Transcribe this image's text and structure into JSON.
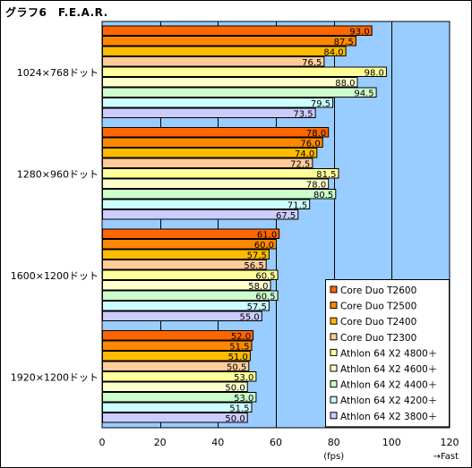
{
  "chart_data": {
    "type": "bar",
    "orientation": "horizontal",
    "title": "グラフ6　F.E.A.R.",
    "categories": [
      "1024×768ドット",
      "1280×960ドット",
      "1600×1200ドット",
      "1920×1200ドット"
    ],
    "series": [
      {
        "name": "Core Duo T2600",
        "color": "#ff6600",
        "values": [
          93.0,
          78.0,
          61.0,
          52.0
        ]
      },
      {
        "name": "Core Duo T2500",
        "color": "#ff8800",
        "values": [
          87.5,
          76.0,
          60.0,
          51.5
        ]
      },
      {
        "name": "Core Duo T2400",
        "color": "#ffbb00",
        "values": [
          84.0,
          74.0,
          57.5,
          51.0
        ]
      },
      {
        "name": "Core Duo T2300",
        "color": "#ffcc99",
        "values": [
          76.5,
          72.5,
          56.5,
          50.5
        ]
      },
      {
        "name": "Athlon 64 X2 4800＋",
        "color": "#ffff99",
        "values": [
          98.0,
          81.5,
          60.5,
          53.0
        ]
      },
      {
        "name": "Athlon 64 X2 4600＋",
        "color": "#ffffcc",
        "values": [
          88.0,
          78.0,
          58.0,
          50.0
        ]
      },
      {
        "name": "Athlon 64 X2 4400＋",
        "color": "#ccffcc",
        "values": [
          94.5,
          80.5,
          60.5,
          53.0
        ]
      },
      {
        "name": "Athlon 64 X2 4200＋",
        "color": "#ccffff",
        "values": [
          79.5,
          71.5,
          57.5,
          51.5
        ]
      },
      {
        "name": "Athlon 64 X2 3800＋",
        "color": "#ccccff",
        "values": [
          73.5,
          67.5,
          55.0,
          50.0
        ]
      }
    ],
    "value_labels": [
      [
        "93.0",
        "78.0",
        "61.0",
        "52.0"
      ],
      [
        "87.5",
        "76.0",
        "60.0",
        "51.5"
      ],
      [
        "84.0",
        "74.0",
        "57.5",
        "51.0"
      ],
      [
        "76.5",
        "72.5",
        "56.5",
        "50.5"
      ],
      [
        "98.0",
        "81.5",
        "60.5",
        "53.0"
      ],
      [
        "88.0",
        "78.0",
        "58.0",
        "50.0"
      ],
      [
        "94.5",
        "80.5",
        "60.5",
        "53.0"
      ],
      [
        "79.5",
        "71.5",
        "57.5",
        "51.5"
      ],
      [
        "73.5",
        "67.5",
        "55.0",
        "50.0"
      ]
    ],
    "xlim": [
      0,
      120
    ],
    "xticks": [
      0,
      20,
      40,
      60,
      80,
      100,
      120
    ],
    "xlabel": "(fps)",
    "xlabel_right": "→Fast",
    "grid": true,
    "plot_background": "#99ccff",
    "legend_position": "bottom-right"
  }
}
